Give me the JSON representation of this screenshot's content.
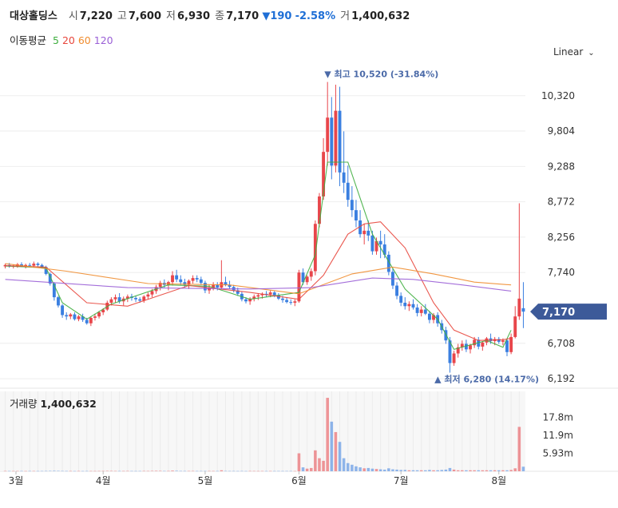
{
  "header": {
    "name": "대상홀딩스",
    "open_label": "시",
    "open": "7,220",
    "high_label": "고",
    "high": "7,600",
    "low_label": "저",
    "low": "6,930",
    "close_label": "종",
    "close": "7,170",
    "change_arrow": "▼",
    "change": "190",
    "change_pct": "-2.58%",
    "volume_label": "거",
    "volume": "1,400,632"
  },
  "moving_average": {
    "label": "이동평균",
    "periods": [
      {
        "text": "5",
        "color": "#3fae3f"
      },
      {
        "text": "20",
        "color": "#e8463c"
      },
      {
        "text": "60",
        "color": "#f08c2e"
      },
      {
        "text": "120",
        "color": "#9a5fd6"
      }
    ]
  },
  "scale_selector": {
    "label": "Linear",
    "icon": "chevron-down-icon"
  },
  "price_badge": "7,170",
  "annotations": {
    "high": "▼ 최고 10,520 (-31.84%)",
    "low": "▲ 최저 6,280 (14.17%)"
  },
  "volume_panel": {
    "label": "거래량",
    "value": "1,400,632"
  },
  "colors": {
    "up": "#e8464b",
    "down": "#3a7fe0",
    "badge": "#3d5a99"
  },
  "chart_data": {
    "type": "candlestick",
    "y_ticks": [
      "10,320",
      "9,804",
      "9,288",
      "8,772",
      "8,256",
      "7,740",
      "6,708",
      "6,192"
    ],
    "y_tick_values": [
      10320,
      9804,
      9288,
      8772,
      8256,
      7740,
      6708,
      6192
    ],
    "ylim": [
      6100,
      10760
    ],
    "x_labels": [
      "3월",
      "4월",
      "5월",
      "6월",
      "7월",
      "8월"
    ],
    "x_label_index": [
      0,
      24,
      49,
      72,
      97,
      121
    ],
    "volume_ticks": [
      "17.8m",
      "11.9m",
      "5.93m"
    ],
    "volume_tick_values": [
      17800000,
      11900000,
      5930000
    ],
    "candles": [
      [
        7830,
        7870,
        7800,
        7850
      ],
      [
        7850,
        7880,
        7810,
        7830
      ],
      [
        7830,
        7860,
        7800,
        7840
      ],
      [
        7840,
        7880,
        7810,
        7860
      ],
      [
        7860,
        7890,
        7820,
        7830
      ],
      [
        7830,
        7870,
        7800,
        7850
      ],
      [
        7850,
        7880,
        7820,
        7840
      ],
      [
        7840,
        7900,
        7810,
        7870
      ],
      [
        7870,
        7890,
        7830,
        7850
      ],
      [
        7850,
        7870,
        7800,
        7820
      ],
      [
        7820,
        7840,
        7700,
        7720
      ],
      [
        7720,
        7740,
        7550,
        7580
      ],
      [
        7580,
        7600,
        7330,
        7380
      ],
      [
        7380,
        7400,
        7230,
        7260
      ],
      [
        7260,
        7280,
        7080,
        7120
      ],
      [
        7120,
        7160,
        7050,
        7100
      ],
      [
        7100,
        7150,
        7060,
        7130
      ],
      [
        7130,
        7160,
        7040,
        7060
      ],
      [
        7060,
        7120,
        7030,
        7100
      ],
      [
        7100,
        7140,
        7020,
        7050
      ],
      [
        7050,
        7080,
        6980,
        7000
      ],
      [
        7000,
        7100,
        6960,
        7080
      ],
      [
        7080,
        7140,
        7040,
        7100
      ],
      [
        7100,
        7180,
        7070,
        7160
      ],
      [
        7160,
        7220,
        7120,
        7200
      ],
      [
        7200,
        7330,
        7180,
        7300
      ],
      [
        7300,
        7380,
        7260,
        7350
      ],
      [
        7350,
        7420,
        7300,
        7380
      ],
      [
        7380,
        7440,
        7290,
        7320
      ],
      [
        7320,
        7390,
        7260,
        7360
      ],
      [
        7360,
        7420,
        7310,
        7390
      ],
      [
        7390,
        7430,
        7330,
        7370
      ],
      [
        7370,
        7400,
        7310,
        7350
      ],
      [
        7350,
        7380,
        7300,
        7330
      ],
      [
        7330,
        7410,
        7300,
        7390
      ],
      [
        7390,
        7450,
        7350,
        7420
      ],
      [
        7420,
        7500,
        7380,
        7470
      ],
      [
        7470,
        7560,
        7430,
        7530
      ],
      [
        7530,
        7620,
        7480,
        7590
      ],
      [
        7590,
        7640,
        7520,
        7560
      ],
      [
        7560,
        7620,
        7480,
        7600
      ],
      [
        7600,
        7760,
        7550,
        7700
      ],
      [
        7700,
        7780,
        7600,
        7640
      ],
      [
        7640,
        7700,
        7560,
        7600
      ],
      [
        7600,
        7650,
        7520,
        7560
      ],
      [
        7560,
        7640,
        7500,
        7620
      ],
      [
        7620,
        7700,
        7580,
        7660
      ],
      [
        7660,
        7700,
        7600,
        7640
      ],
      [
        7640,
        7680,
        7560,
        7590
      ],
      [
        7590,
        7620,
        7440,
        7480
      ],
      [
        7480,
        7560,
        7430,
        7520
      ],
      [
        7520,
        7600,
        7480,
        7560
      ],
      [
        7560,
        7600,
        7480,
        7520
      ],
      [
        7520,
        7920,
        7500,
        7600
      ],
      [
        7600,
        7680,
        7540,
        7560
      ],
      [
        7560,
        7620,
        7500,
        7530
      ],
      [
        7530,
        7560,
        7450,
        7480
      ],
      [
        7480,
        7520,
        7400,
        7430
      ],
      [
        7430,
        7460,
        7320,
        7350
      ],
      [
        7350,
        7380,
        7290,
        7320
      ],
      [
        7320,
        7380,
        7270,
        7360
      ],
      [
        7360,
        7420,
        7320,
        7390
      ],
      [
        7390,
        7440,
        7340,
        7410
      ],
      [
        7410,
        7450,
        7360,
        7430
      ],
      [
        7430,
        7470,
        7380,
        7420
      ],
      [
        7420,
        7480,
        7380,
        7450
      ],
      [
        7450,
        7470,
        7380,
        7410
      ],
      [
        7410,
        7440,
        7340,
        7360
      ],
      [
        7360,
        7400,
        7300,
        7340
      ],
      [
        7340,
        7380,
        7290,
        7310
      ],
      [
        7310,
        7350,
        7270,
        7300
      ],
      [
        7300,
        7350,
        7250,
        7320
      ],
      [
        7320,
        7780,
        7300,
        7740
      ],
      [
        7740,
        7800,
        7560,
        7600
      ],
      [
        7600,
        7700,
        7560,
        7680
      ],
      [
        7680,
        7800,
        7620,
        7760
      ],
      [
        7760,
        8500,
        7700,
        8450
      ],
      [
        8450,
        8900,
        8400,
        8850
      ],
      [
        8850,
        9700,
        8800,
        9500
      ],
      [
        9500,
        10520,
        9300,
        10000
      ],
      [
        10000,
        10300,
        9100,
        9300
      ],
      [
        9300,
        10480,
        9200,
        10100
      ],
      [
        10100,
        10450,
        9000,
        9200
      ],
      [
        9200,
        9800,
        8900,
        9050
      ],
      [
        9050,
        9300,
        8700,
        8800
      ],
      [
        8800,
        9000,
        8550,
        8650
      ],
      [
        8650,
        8800,
        8400,
        8500
      ],
      [
        8500,
        8650,
        8250,
        8300
      ],
      [
        8300,
        8450,
        8150,
        8350
      ],
      [
        8350,
        8500,
        8200,
        8280
      ],
      [
        8280,
        8350,
        8000,
        8050
      ],
      [
        8050,
        8250,
        8000,
        8200
      ],
      [
        8200,
        8350,
        7950,
        8150
      ],
      [
        8150,
        8300,
        7950,
        8000
      ],
      [
        8000,
        8050,
        7700,
        7750
      ],
      [
        7750,
        7800,
        7500,
        7550
      ],
      [
        7550,
        7600,
        7350,
        7400
      ],
      [
        7400,
        7450,
        7250,
        7300
      ],
      [
        7300,
        7380,
        7200,
        7250
      ],
      [
        7250,
        7320,
        7180,
        7280
      ],
      [
        7280,
        7350,
        7200,
        7230
      ],
      [
        7230,
        7280,
        7100,
        7150
      ],
      [
        7150,
        7250,
        7100,
        7200
      ],
      [
        7200,
        7280,
        7120,
        7140
      ],
      [
        7140,
        7180,
        7000,
        7050
      ],
      [
        7050,
        7150,
        7000,
        7120
      ],
      [
        7120,
        7160,
        6950,
        7000
      ],
      [
        7000,
        7050,
        6850,
        6900
      ],
      [
        6900,
        6950,
        6700,
        6750
      ],
      [
        6750,
        6800,
        6280,
        6420
      ],
      [
        6420,
        6600,
        6380,
        6560
      ],
      [
        6560,
        6700,
        6500,
        6650
      ],
      [
        6650,
        6750,
        6600,
        6700
      ],
      [
        6700,
        6760,
        6580,
        6620
      ],
      [
        6620,
        6700,
        6560,
        6680
      ],
      [
        6680,
        6800,
        6640,
        6760
      ],
      [
        6760,
        6800,
        6620,
        6660
      ],
      [
        6660,
        6740,
        6600,
        6720
      ],
      [
        6720,
        6800,
        6680,
        6780
      ],
      [
        6780,
        6850,
        6700,
        6740
      ],
      [
        6740,
        6800,
        6680,
        6770
      ],
      [
        6770,
        6800,
        6700,
        6730
      ],
      [
        6730,
        6780,
        6680,
        6750
      ],
      [
        6750,
        6780,
        6520,
        6580
      ],
      [
        6580,
        6850,
        6550,
        6800
      ],
      [
        6800,
        7250,
        6780,
        7100
      ],
      [
        7100,
        8750,
        7050,
        7360
      ],
      [
        7220,
        7600,
        6930,
        7170
      ]
    ],
    "volumes": [
      0.09,
      0.09,
      0.08,
      0.09,
      0.09,
      0.08,
      0.09,
      0.09,
      0.08,
      0.09,
      0.1,
      0.12,
      0.14,
      0.12,
      0.1,
      0.09,
      0.09,
      0.08,
      0.09,
      0.08,
      0.09,
      0.09,
      0.08,
      0.09,
      0.1,
      0.12,
      0.11,
      0.1,
      0.09,
      0.09,
      0.1,
      0.09,
      0.08,
      0.09,
      0.1,
      0.1,
      0.12,
      0.14,
      0.12,
      0.1,
      0.1,
      0.2,
      0.14,
      0.1,
      0.09,
      0.1,
      0.1,
      0.09,
      0.09,
      0.1,
      0.09,
      0.09,
      0.09,
      0.3,
      0.1,
      0.09,
      0.09,
      0.08,
      0.09,
      0.08,
      0.09,
      0.09,
      0.08,
      0.09,
      0.08,
      0.09,
      0.08,
      0.09,
      0.08,
      0.09,
      0.09,
      0.08,
      5.5,
      1.2,
      0.8,
      1.0,
      6.4,
      4.0,
      3.2,
      22.5,
      15.2,
      12.0,
      9.0,
      4.0,
      2.5,
      2.0,
      1.5,
      1.2,
      0.9,
      1.0,
      0.8,
      0.7,
      0.6,
      0.5,
      0.9,
      0.6,
      0.5,
      0.4,
      0.4,
      0.3,
      0.3,
      0.3,
      0.3,
      0.3,
      0.4,
      0.3,
      0.3,
      0.4,
      0.5,
      1.0,
      0.5,
      0.3,
      0.3,
      0.3,
      0.3,
      0.3,
      0.3,
      0.3,
      0.3,
      0.3,
      0.3,
      0.3,
      0.3,
      0.3,
      0.4,
      0.9,
      13.6,
      1.4
    ],
    "ma_series": [
      {
        "name": "5",
        "color": "#3fae3f",
        "values": [
          [
            0,
            7835
          ],
          [
            10,
            7810
          ],
          [
            14,
            7300
          ],
          [
            20,
            7060
          ],
          [
            26,
            7280
          ],
          [
            40,
            7560
          ],
          [
            50,
            7540
          ],
          [
            60,
            7350
          ],
          [
            72,
            7450
          ],
          [
            76,
            8000
          ],
          [
            79,
            9350
          ],
          [
            84,
            9350
          ],
          [
            90,
            8300
          ],
          [
            98,
            7500
          ],
          [
            106,
            7060
          ],
          [
            110,
            6620
          ],
          [
            118,
            6750
          ],
          [
            122,
            6650
          ],
          [
            124,
            6900
          ]
        ]
      },
      {
        "name": "20",
        "color": "#e8463c",
        "values": [
          [
            0,
            7840
          ],
          [
            10,
            7820
          ],
          [
            20,
            7300
          ],
          [
            30,
            7250
          ],
          [
            45,
            7550
          ],
          [
            60,
            7450
          ],
          [
            72,
            7350
          ],
          [
            78,
            7700
          ],
          [
            84,
            8300
          ],
          [
            88,
            8450
          ],
          [
            92,
            8480
          ],
          [
            98,
            8100
          ],
          [
            105,
            7300
          ],
          [
            110,
            6900
          ],
          [
            116,
            6750
          ],
          [
            122,
            6760
          ],
          [
            124,
            6780
          ]
        ]
      },
      {
        "name": "60",
        "color": "#f08c2e",
        "values": [
          [
            0,
            7870
          ],
          [
            15,
            7760
          ],
          [
            35,
            7580
          ],
          [
            55,
            7560
          ],
          [
            72,
            7430
          ],
          [
            85,
            7720
          ],
          [
            95,
            7820
          ],
          [
            105,
            7720
          ],
          [
            115,
            7600
          ],
          [
            124,
            7560
          ]
        ]
      },
      {
        "name": "120",
        "color": "#9a5fd6",
        "values": [
          [
            0,
            7640
          ],
          [
            30,
            7520
          ],
          [
            60,
            7500
          ],
          [
            75,
            7520
          ],
          [
            90,
            7660
          ],
          [
            100,
            7640
          ],
          [
            112,
            7560
          ],
          [
            124,
            7470
          ]
        ]
      }
    ]
  }
}
